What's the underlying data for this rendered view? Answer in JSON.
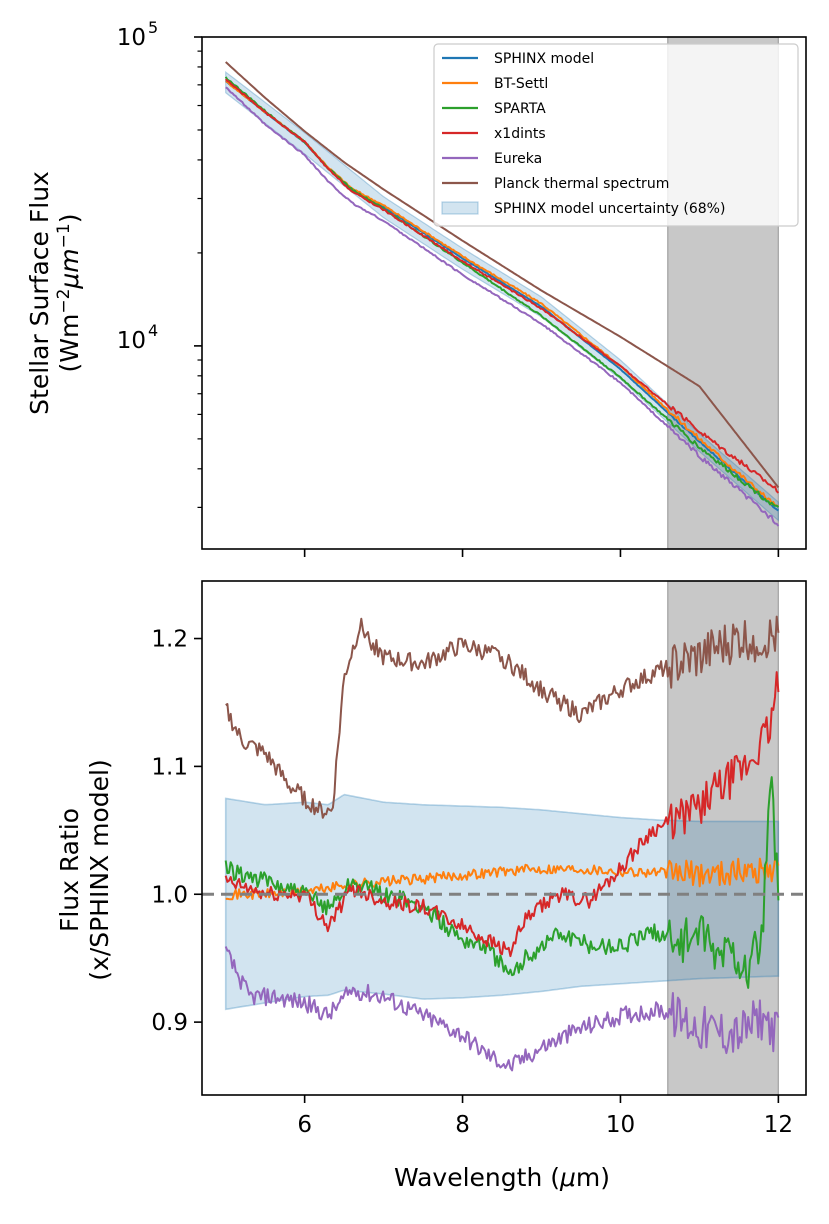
{
  "chart_data": [
    {
      "type": "line",
      "panel": "top",
      "title": "",
      "xlabel": "",
      "ylabel_line1": "Stellar Surface Flux",
      "ylabel_line2_parts": [
        "(Wm",
        "−2",
        "μm",
        "−1",
        ")"
      ],
      "ylabel_text": "Stellar Surface Flux (Wm⁻²μm⁻¹)",
      "yscale": "log",
      "xlim": [
        4.7,
        12.35
      ],
      "ylim": [
        2200,
        100000
      ],
      "ytick_labels": [
        {
          "base": "10",
          "exp": "5",
          "value": 100000
        },
        {
          "base": "10",
          "exp": "4",
          "value": 10000
        }
      ],
      "x_major_ticks": [
        6,
        8,
        10,
        12
      ],
      "y_minor_ticks": [
        3000,
        4000,
        5000,
        6000,
        7000,
        8000,
        9000,
        20000,
        30000,
        40000,
        50000,
        60000,
        70000,
        80000,
        90000
      ],
      "shaded_region": {
        "x": [
          10.6,
          12.0
        ],
        "color": "#c8c8c8"
      },
      "legend": {
        "location": "top-right",
        "entries": [
          {
            "label": "SPHINX model",
            "color": "#1f77b4",
            "kind": "line"
          },
          {
            "label": "BT-Settl",
            "color": "#ff7f0e",
            "kind": "line"
          },
          {
            "label": "SPARTA",
            "color": "#2ca02c",
            "kind": "line"
          },
          {
            "label": "x1dints",
            "color": "#d62728",
            "kind": "line"
          },
          {
            "label": "Eureka",
            "color": "#9467bd",
            "kind": "line"
          },
          {
            "label": "Planck thermal spectrum",
            "color": "#8c564b",
            "kind": "line"
          },
          {
            "label": "SPHINX model uncertainty (68%)",
            "color": "#1f77b4",
            "kind": "patch"
          }
        ]
      },
      "series": [
        {
          "name": "SPHINX model",
          "color": "#1f77b4",
          "x": [
            5.0,
            5.5,
            6.0,
            6.3,
            6.6,
            7.0,
            8.0,
            9.0,
            10.0,
            11.0,
            12.0
          ],
          "y": [
            72000,
            57000,
            45500,
            37500,
            32000,
            28200,
            19200,
            13400,
            8400,
            4900,
            2920
          ]
        },
        {
          "name": "BT-Settl",
          "color": "#ff7f0e",
          "x": [
            5.0,
            5.5,
            6.0,
            6.3,
            6.6,
            7.0,
            8.0,
            9.0,
            10.0,
            11.0,
            12.0
          ],
          "y": [
            72000,
            57200,
            45800,
            37800,
            32300,
            28500,
            19500,
            13700,
            8600,
            5000,
            2980
          ]
        },
        {
          "name": "SPARTA",
          "color": "#2ca02c",
          "x": [
            5.0,
            5.5,
            6.0,
            6.3,
            6.6,
            7.0,
            8.0,
            9.0,
            10.0,
            11.0,
            12.0
          ],
          "y": [
            74000,
            57500,
            45800,
            37600,
            32100,
            27800,
            18600,
            12500,
            7900,
            4700,
            2960
          ]
        },
        {
          "name": "x1dints",
          "color": "#d62728",
          "x": [
            5.0,
            5.5,
            6.0,
            6.3,
            6.6,
            7.0,
            8.0,
            9.0,
            10.0,
            11.0,
            12.0
          ],
          "y": [
            73000,
            57000,
            45800,
            37300,
            31600,
            27600,
            18800,
            13200,
            8600,
            5300,
            3400
          ]
        },
        {
          "name": "Eureka",
          "color": "#9467bd",
          "x": [
            5.0,
            5.5,
            6.0,
            6.3,
            6.6,
            7.0,
            8.0,
            9.0,
            10.0,
            11.0,
            12.0
          ],
          "y": [
            69000,
            52000,
            41500,
            34000,
            29000,
            25400,
            17000,
            11800,
            7600,
            4400,
            2650
          ]
        },
        {
          "name": "Planck thermal spectrum",
          "color": "#8c564b",
          "x": [
            5.0,
            5.5,
            6.0,
            6.5,
            7.0,
            8.0,
            9.0,
            10.0,
            11.0,
            12.0
          ],
          "y": [
            83000,
            63500,
            49500,
            39300,
            32100,
            21900,
            15100,
            10700,
            7400,
            3480
          ]
        }
      ],
      "uncertainty_band": {
        "name": "SPHINX model uncertainty (68%)",
        "color": "#1f77b4",
        "x": [
          5.0,
          6.0,
          7.0,
          8.0,
          9.0,
          10.0,
          11.0,
          12.0
        ],
        "lower": [
          66000,
          41800,
          26000,
          17700,
          12400,
          7800,
          4550,
          2720
        ],
        "upper": [
          77000,
          49000,
          30400,
          20700,
          14400,
          9000,
          5200,
          3120
        ]
      }
    },
    {
      "type": "line",
      "panel": "bottom",
      "title": "",
      "xlabel": "Wavelength (μm)",
      "xlabel_parts": [
        "Wavelength (",
        "μ",
        "m)"
      ],
      "ylabel_line1": "Flux Ratio",
      "ylabel_line2": "(x/SPHINX model)",
      "xlim": [
        4.7,
        12.35
      ],
      "ylim": [
        0.843,
        1.245
      ],
      "xticks": [
        6,
        8,
        10,
        12
      ],
      "xtick_labels": [
        "6",
        "8",
        "10",
        "12"
      ],
      "yticks": [
        0.9,
        1.0,
        1.1,
        1.2
      ],
      "ytick_labels": [
        "0.9",
        "1.0",
        "1.1",
        "1.2"
      ],
      "reference_line": {
        "y": 1.0,
        "style": "dashed",
        "color": "#808080"
      },
      "shaded_region": {
        "x": [
          10.6,
          12.0
        ],
        "color": "#c8c8c8"
      },
      "uncertainty_band": {
        "name": "SPHINX model uncertainty (68%)",
        "color": "#1f77b4",
        "x": [
          5.0,
          5.5,
          6.0,
          6.3,
          6.5,
          7.0,
          7.5,
          8.0,
          8.5,
          9.0,
          9.5,
          10.0,
          10.5,
          11.0,
          11.5,
          12.0
        ],
        "lower": [
          0.91,
          0.915,
          0.92,
          0.921,
          0.925,
          0.922,
          0.918,
          0.919,
          0.921,
          0.924,
          0.928,
          0.93,
          0.932,
          0.934,
          0.935,
          0.936
        ],
        "upper": [
          1.075,
          1.07,
          1.072,
          1.07,
          1.078,
          1.072,
          1.07,
          1.069,
          1.068,
          1.066,
          1.063,
          1.06,
          1.058,
          1.057,
          1.057,
          1.057
        ]
      },
      "series": [
        {
          "name": "BT-Settl",
          "color": "#ff7f0e",
          "x": [
            5.0,
            5.5,
            6.0,
            6.3,
            6.6,
            7.0,
            7.5,
            8.0,
            8.5,
            9.0,
            9.5,
            10.0,
            10.5,
            11.0,
            11.5,
            12.0
          ],
          "y": [
            1.0,
            1.0,
            1.002,
            1.005,
            1.008,
            1.01,
            1.012,
            1.015,
            1.018,
            1.02,
            1.02,
            1.018,
            1.017,
            1.016,
            1.018,
            1.02
          ]
        },
        {
          "name": "SPARTA",
          "color": "#2ca02c",
          "x": [
            5.0,
            5.5,
            6.0,
            6.3,
            6.6,
            7.0,
            7.5,
            8.0,
            8.3,
            8.6,
            8.8,
            9.2,
            9.6,
            10.0,
            10.4,
            10.8,
            11.0,
            11.2,
            11.4,
            11.6,
            11.8,
            11.9,
            12.0
          ],
          "y": [
            1.02,
            1.01,
            1.0,
            0.99,
            1.01,
            1.0,
            0.99,
            0.965,
            0.96,
            0.935,
            0.95,
            0.97,
            0.96,
            0.96,
            0.97,
            0.965,
            0.97,
            0.95,
            0.96,
            0.94,
            0.97,
            1.09,
            1.0
          ]
        },
        {
          "name": "x1dints",
          "color": "#d62728",
          "x": [
            5.0,
            5.5,
            6.0,
            6.3,
            6.6,
            7.0,
            7.5,
            8.0,
            8.3,
            8.6,
            8.8,
            9.2,
            9.6,
            10.0,
            10.4,
            10.8,
            11.2,
            11.6,
            11.9,
            12.0
          ],
          "y": [
            1.01,
            1.0,
            1.0,
            0.975,
            1.005,
            0.995,
            0.99,
            0.975,
            0.965,
            0.955,
            0.98,
            1.0,
            0.995,
            1.02,
            1.05,
            1.06,
            1.08,
            1.1,
            1.13,
            1.17
          ]
        },
        {
          "name": "Eureka",
          "color": "#9467bd",
          "x": [
            5.0,
            5.3,
            5.6,
            6.0,
            6.3,
            6.6,
            7.0,
            7.5,
            8.0,
            8.3,
            8.6,
            9.0,
            9.5,
            10.0,
            10.5,
            11.0,
            11.5,
            11.8,
            12.0
          ],
          "y": [
            0.955,
            0.92,
            0.92,
            0.915,
            0.905,
            0.925,
            0.92,
            0.905,
            0.89,
            0.875,
            0.865,
            0.88,
            0.895,
            0.905,
            0.91,
            0.895,
            0.89,
            0.905,
            0.89
          ]
        },
        {
          "name": "Planck thermal spectrum",
          "color": "#8c564b",
          "x": [
            5.0,
            5.2,
            5.5,
            5.8,
            6.0,
            6.2,
            6.35,
            6.5,
            6.7,
            7.0,
            7.5,
            8.0,
            8.5,
            9.0,
            9.5,
            10.0,
            10.5,
            11.0,
            11.5,
            12.0
          ],
          "y": [
            1.145,
            1.12,
            1.11,
            1.085,
            1.075,
            1.065,
            1.065,
            1.17,
            1.21,
            1.185,
            1.18,
            1.195,
            1.185,
            1.16,
            1.14,
            1.16,
            1.175,
            1.185,
            1.2,
            1.2
          ]
        }
      ]
    }
  ]
}
